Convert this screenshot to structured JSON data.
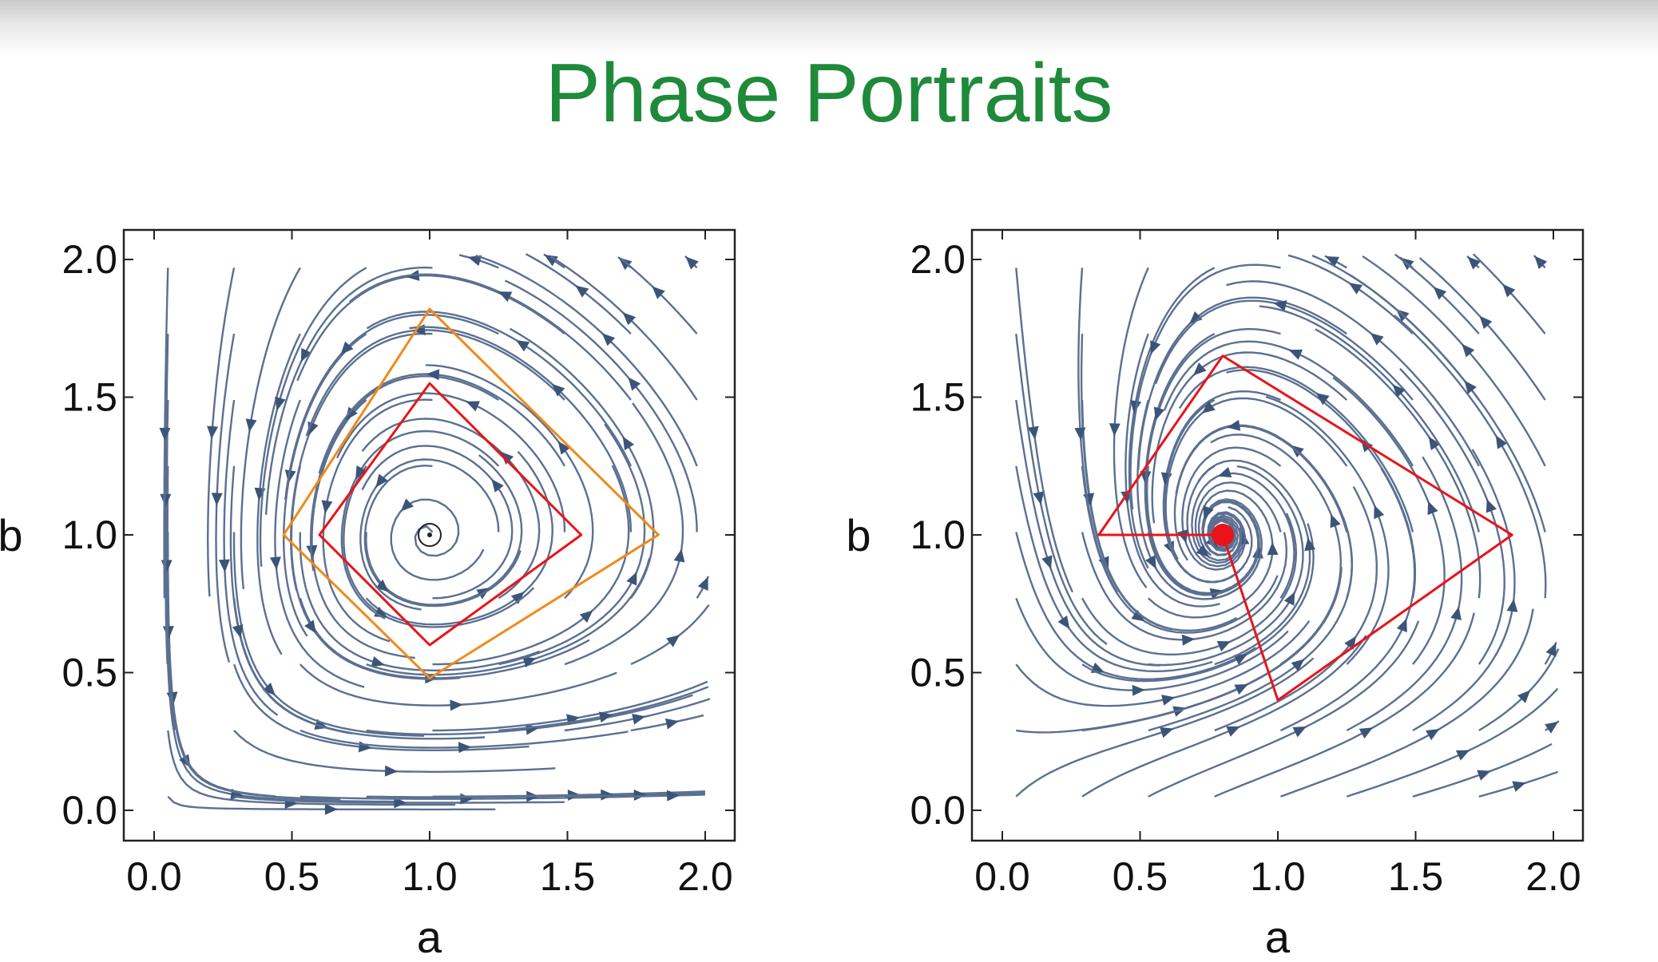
{
  "title": "Phase Portraits",
  "colors": {
    "title": "#1e8a3a",
    "stream": "#5b7091",
    "arrow": "#3d5479",
    "orbit_orange": "#f08a1a",
    "orbit_red": "#e8141a",
    "fixed_point": "#e8141a"
  },
  "chart_data": [
    {
      "type": "streamplot",
      "title": "",
      "xlabel": "a",
      "ylabel": "b",
      "xlim": [
        0,
        2
      ],
      "ylim": [
        0,
        2
      ],
      "xticks": [
        "0.0",
        "0.5",
        "1.0",
        "1.5",
        "2.0"
      ],
      "yticks": [
        "0.0",
        "0.5",
        "1.0",
        "1.5",
        "2.0"
      ],
      "grid": false,
      "fixed_point": {
        "a": 1.0,
        "b": 1.0,
        "kind": "center"
      },
      "highlighted_trajectories": [
        {
          "color": "orange",
          "points": [
            [
              0.47,
              1.0
            ],
            [
              1.0,
              1.82
            ],
            [
              1.83,
              1.0
            ],
            [
              1.0,
              0.48
            ]
          ]
        },
        {
          "color": "red",
          "points": [
            [
              0.6,
              1.0
            ],
            [
              1.0,
              1.55
            ],
            [
              1.55,
              1.0
            ],
            [
              1.0,
              0.6
            ]
          ]
        }
      ]
    },
    {
      "type": "streamplot",
      "title": "",
      "xlabel": "a",
      "ylabel": "b",
      "xlim": [
        0,
        2
      ],
      "ylim": [
        0,
        2
      ],
      "xticks": [
        "0.0",
        "0.5",
        "1.0",
        "1.5",
        "2.0"
      ],
      "yticks": [
        "0.0",
        "0.5",
        "1.0",
        "1.5",
        "2.0"
      ],
      "grid": false,
      "fixed_point": {
        "a": 0.8,
        "b": 1.0,
        "kind": "stable spiral"
      },
      "highlighted_trajectories": [
        {
          "color": "red",
          "points": [
            [
              0.35,
              1.0
            ],
            [
              0.8,
              1.65
            ],
            [
              1.85,
              1.0
            ],
            [
              1.0,
              0.4
            ],
            [
              0.8,
              1.0
            ]
          ]
        }
      ]
    }
  ]
}
